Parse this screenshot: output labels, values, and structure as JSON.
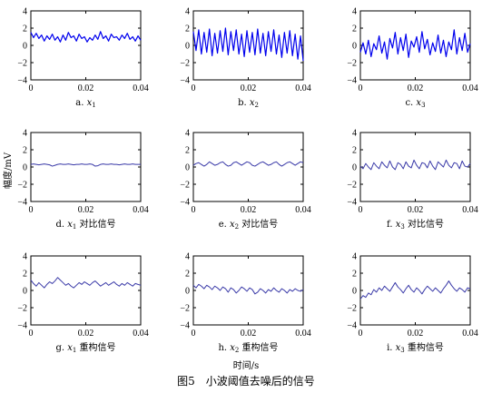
{
  "figure": {
    "title": "图5　小波阈值去噪后的信号",
    "xlabel": "时间/s",
    "ylabel": "幅度/mV"
  },
  "chart_data": [
    {
      "id": "a",
      "type": "line",
      "caption_prefix": "a.",
      "var": "x",
      "sub": "1",
      "caption_suffix": "",
      "x_range": [
        0,
        0.04
      ],
      "ylim": [
        -4,
        4
      ],
      "xticks": [
        "0",
        "0.02",
        "0.04"
      ],
      "yticks": [
        "4",
        "2",
        "0",
        "−2",
        "−4"
      ],
      "series": [
        {
          "color": "#0000ee",
          "values": [
            1.5,
            0.9,
            1.4,
            0.8,
            1.2,
            0.5,
            1.1,
            0.7,
            1.3,
            0.6,
            1.0,
            0.4,
            1.2,
            0.6,
            1.5,
            0.9,
            1.1,
            0.5,
            1.3,
            0.8,
            1.0,
            0.4,
            0.9,
            0.6,
            1.2,
            0.7,
            1.6,
            0.8,
            1.1,
            0.5,
            1.3,
            0.9,
            1.0,
            0.6,
            1.2,
            0.8,
            1.4,
            0.7,
            1.0,
            0.5,
            1.1,
            0.6
          ]
        }
      ]
    },
    {
      "id": "b",
      "type": "line",
      "caption_prefix": "b.",
      "var": "x",
      "sub": "2",
      "caption_suffix": "",
      "x_range": [
        0,
        0.04
      ],
      "ylim": [
        -4,
        4
      ],
      "xticks": [
        "0",
        "0.02",
        "0.04"
      ],
      "yticks": [
        "4",
        "2",
        "0",
        "−2",
        "−4"
      ],
      "series": [
        {
          "color": "#0000ee",
          "values": [
            1.6,
            -0.6,
            1.8,
            -1.0,
            1.5,
            -0.8,
            1.9,
            -1.2,
            1.4,
            -0.9,
            1.7,
            -0.7,
            2.0,
            -1.1,
            1.6,
            -0.6,
            1.8,
            -1.0,
            1.3,
            -1.3,
            1.7,
            -0.8,
            1.5,
            -1.1,
            1.9,
            -0.9,
            1.4,
            -1.2,
            1.6,
            -0.7,
            1.8,
            -1.0,
            1.2,
            -1.4,
            1.5,
            -0.9,
            1.7,
            -1.2,
            1.3,
            -1.6,
            1.1,
            -1.8
          ]
        }
      ]
    },
    {
      "id": "c",
      "type": "line",
      "caption_prefix": "c.",
      "var": "x",
      "sub": "3",
      "caption_suffix": "",
      "x_range": [
        0,
        0.04
      ],
      "ylim": [
        -4,
        4
      ],
      "xticks": [
        "0",
        "0.02",
        "0.04"
      ],
      "yticks": [
        "4",
        "2",
        "0",
        "−2",
        "−4"
      ],
      "series": [
        {
          "color": "#0000ee",
          "values": [
            -0.8,
            0.3,
            -1.0,
            0.6,
            -1.3,
            0.2,
            -0.5,
            1.1,
            -0.9,
            0.4,
            -1.6,
            0.8,
            -0.3,
            1.5,
            -1.0,
            0.9,
            -0.6,
            1.3,
            -1.4,
            0.5,
            -0.2,
            1.0,
            -0.8,
            1.6,
            -0.4,
            0.7,
            -1.1,
            0.3,
            -0.7,
            1.2,
            -0.9,
            0.6,
            -1.3,
            0.4,
            -0.5,
            1.8,
            -1.0,
            0.9,
            -0.6,
            1.4,
            -0.8,
            0.2
          ]
        }
      ]
    },
    {
      "id": "d",
      "type": "line",
      "caption_prefix": "d.",
      "var": "x",
      "sub": "1",
      "caption_suffix": "对比信号",
      "x_range": [
        0,
        0.04
      ],
      "ylim": [
        -4,
        4
      ],
      "xticks": [
        "0",
        "0.02",
        "0.04"
      ],
      "yticks": [
        "4",
        "2",
        "0",
        "−2",
        "−4"
      ],
      "series": [
        {
          "color": "#3a3aa8",
          "values": [
            0.3,
            0.35,
            0.3,
            0.25,
            0.3,
            0.35,
            0.3,
            0.25,
            0.1,
            0.2,
            0.3,
            0.35,
            0.3,
            0.3,
            0.35,
            0.3,
            0.25,
            0.3,
            0.3,
            0.35,
            0.3,
            0.3,
            0.35,
            0.3,
            0.1,
            0.15,
            0.3,
            0.35,
            0.3,
            0.3,
            0.35,
            0.3,
            0.3,
            0.25,
            0.3,
            0.35,
            0.3,
            0.3,
            0.35,
            0.3,
            0.3,
            0.3
          ]
        }
      ]
    },
    {
      "id": "e",
      "type": "line",
      "caption_prefix": "e.",
      "var": "x",
      "sub": "2",
      "caption_suffix": "对比信号",
      "x_range": [
        0,
        0.04
      ],
      "ylim": [
        -4,
        4
      ],
      "xticks": [
        "0",
        "0.02",
        "0.04"
      ],
      "yticks": [
        "4",
        "2",
        "0",
        "−2",
        "−4"
      ],
      "series": [
        {
          "color": "#3a3aa8",
          "values": [
            0.2,
            0.4,
            0.5,
            0.3,
            0.1,
            0.3,
            0.6,
            0.4,
            0.2,
            0.3,
            0.5,
            0.6,
            0.3,
            0.1,
            0.2,
            0.5,
            0.6,
            0.4,
            0.2,
            0.4,
            0.6,
            0.5,
            0.2,
            0.1,
            0.3,
            0.5,
            0.6,
            0.4,
            0.2,
            0.3,
            0.5,
            0.6,
            0.3,
            0.1,
            0.3,
            0.5,
            0.6,
            0.4,
            0.2,
            0.4,
            0.6,
            0.5
          ]
        }
      ]
    },
    {
      "id": "f",
      "type": "line",
      "caption_prefix": "f.",
      "var": "x",
      "sub": "3",
      "caption_suffix": "对比信号",
      "x_range": [
        0,
        0.04
      ],
      "ylim": [
        -4,
        4
      ],
      "xticks": [
        "0",
        "0.02",
        "0.04"
      ],
      "yticks": [
        "4",
        "2",
        "0",
        "−2",
        "−4"
      ],
      "series": [
        {
          "color": "#3a3aa8",
          "values": [
            0.1,
            -0.2,
            0.4,
            0.0,
            -0.3,
            0.5,
            0.1,
            -0.2,
            0.6,
            0.2,
            -0.1,
            0.7,
            0.0,
            -0.3,
            0.5,
            0.3,
            -0.2,
            0.6,
            0.1,
            -0.1,
            0.8,
            0.2,
            -0.2,
            0.5,
            0.4,
            -0.1,
            0.7,
            0.1,
            -0.3,
            0.6,
            0.3,
            0.0,
            0.8,
            0.2,
            -0.1,
            0.5,
            0.4,
            -0.2,
            0.7,
            0.1,
            0.0,
            0.4
          ]
        }
      ]
    },
    {
      "id": "g",
      "type": "line",
      "caption_prefix": "g.",
      "var": "x",
      "sub": "1",
      "caption_suffix": "重构信号",
      "x_range": [
        0,
        0.04
      ],
      "ylim": [
        -4,
        4
      ],
      "xticks": [
        "0",
        "0.02",
        "0.04"
      ],
      "yticks": [
        "4",
        "2",
        "0",
        "−2",
        "−4"
      ],
      "series": [
        {
          "color": "#3a3aa8",
          "values": [
            1.2,
            0.8,
            0.5,
            0.9,
            0.6,
            0.3,
            0.7,
            1.0,
            0.8,
            1.1,
            1.5,
            1.2,
            0.9,
            0.6,
            0.8,
            0.5,
            0.3,
            0.6,
            0.9,
            0.7,
            1.0,
            0.8,
            0.6,
            0.9,
            1.1,
            0.8,
            0.5,
            0.7,
            0.9,
            0.6,
            0.8,
            1.0,
            0.7,
            0.5,
            0.8,
            0.6,
            0.9,
            0.7,
            0.5,
            0.8,
            0.7,
            0.6
          ]
        }
      ]
    },
    {
      "id": "h",
      "type": "line",
      "caption_prefix": "h.",
      "var": "x",
      "sub": "2",
      "caption_suffix": "重构信号",
      "x_range": [
        0,
        0.04
      ],
      "ylim": [
        -4,
        4
      ],
      "xticks": [
        "0",
        "0.02",
        "0.04"
      ],
      "yticks": [
        "4",
        "2",
        "0",
        "−2",
        "−4"
      ],
      "series": [
        {
          "color": "#3a3aa8",
          "values": [
            0.6,
            0.3,
            0.7,
            0.5,
            0.2,
            0.6,
            0.4,
            0.1,
            0.5,
            0.3,
            0.0,
            0.4,
            0.2,
            -0.2,
            0.3,
            0.1,
            -0.3,
            0.0,
            0.4,
            0.2,
            -0.1,
            0.3,
            0.1,
            -0.4,
            -0.2,
            0.2,
            0.0,
            -0.3,
            0.1,
            -0.1,
            0.3,
            0.0,
            -0.2,
            0.2,
            0.0,
            -0.3,
            0.1,
            -0.1,
            0.2,
            0.0,
            -0.1,
            0.1
          ]
        }
      ]
    },
    {
      "id": "i",
      "type": "line",
      "caption_prefix": "i.",
      "var": "x",
      "sub": "3",
      "caption_suffix": "重构信号",
      "x_range": [
        0,
        0.04
      ],
      "ylim": [
        -4,
        4
      ],
      "xticks": [
        "0",
        "0.02",
        "0.04"
      ],
      "yticks": [
        "4",
        "2",
        "0",
        "−2",
        "−4"
      ],
      "series": [
        {
          "color": "#3a3aa8",
          "values": [
            -1.0,
            -0.6,
            -0.8,
            -0.3,
            -0.5,
            0.1,
            -0.2,
            0.3,
            0.0,
            0.5,
            0.2,
            -0.1,
            0.4,
            0.9,
            0.4,
            0.1,
            -0.3,
            0.2,
            0.6,
            0.1,
            -0.2,
            0.3,
            0.0,
            -0.4,
            0.1,
            0.5,
            0.2,
            -0.1,
            0.3,
            0.0,
            -0.3,
            0.2,
            0.6,
            1.1,
            0.6,
            0.2,
            -0.1,
            0.3,
            0.1,
            -0.2,
            0.3,
            0.2
          ]
        }
      ]
    }
  ]
}
